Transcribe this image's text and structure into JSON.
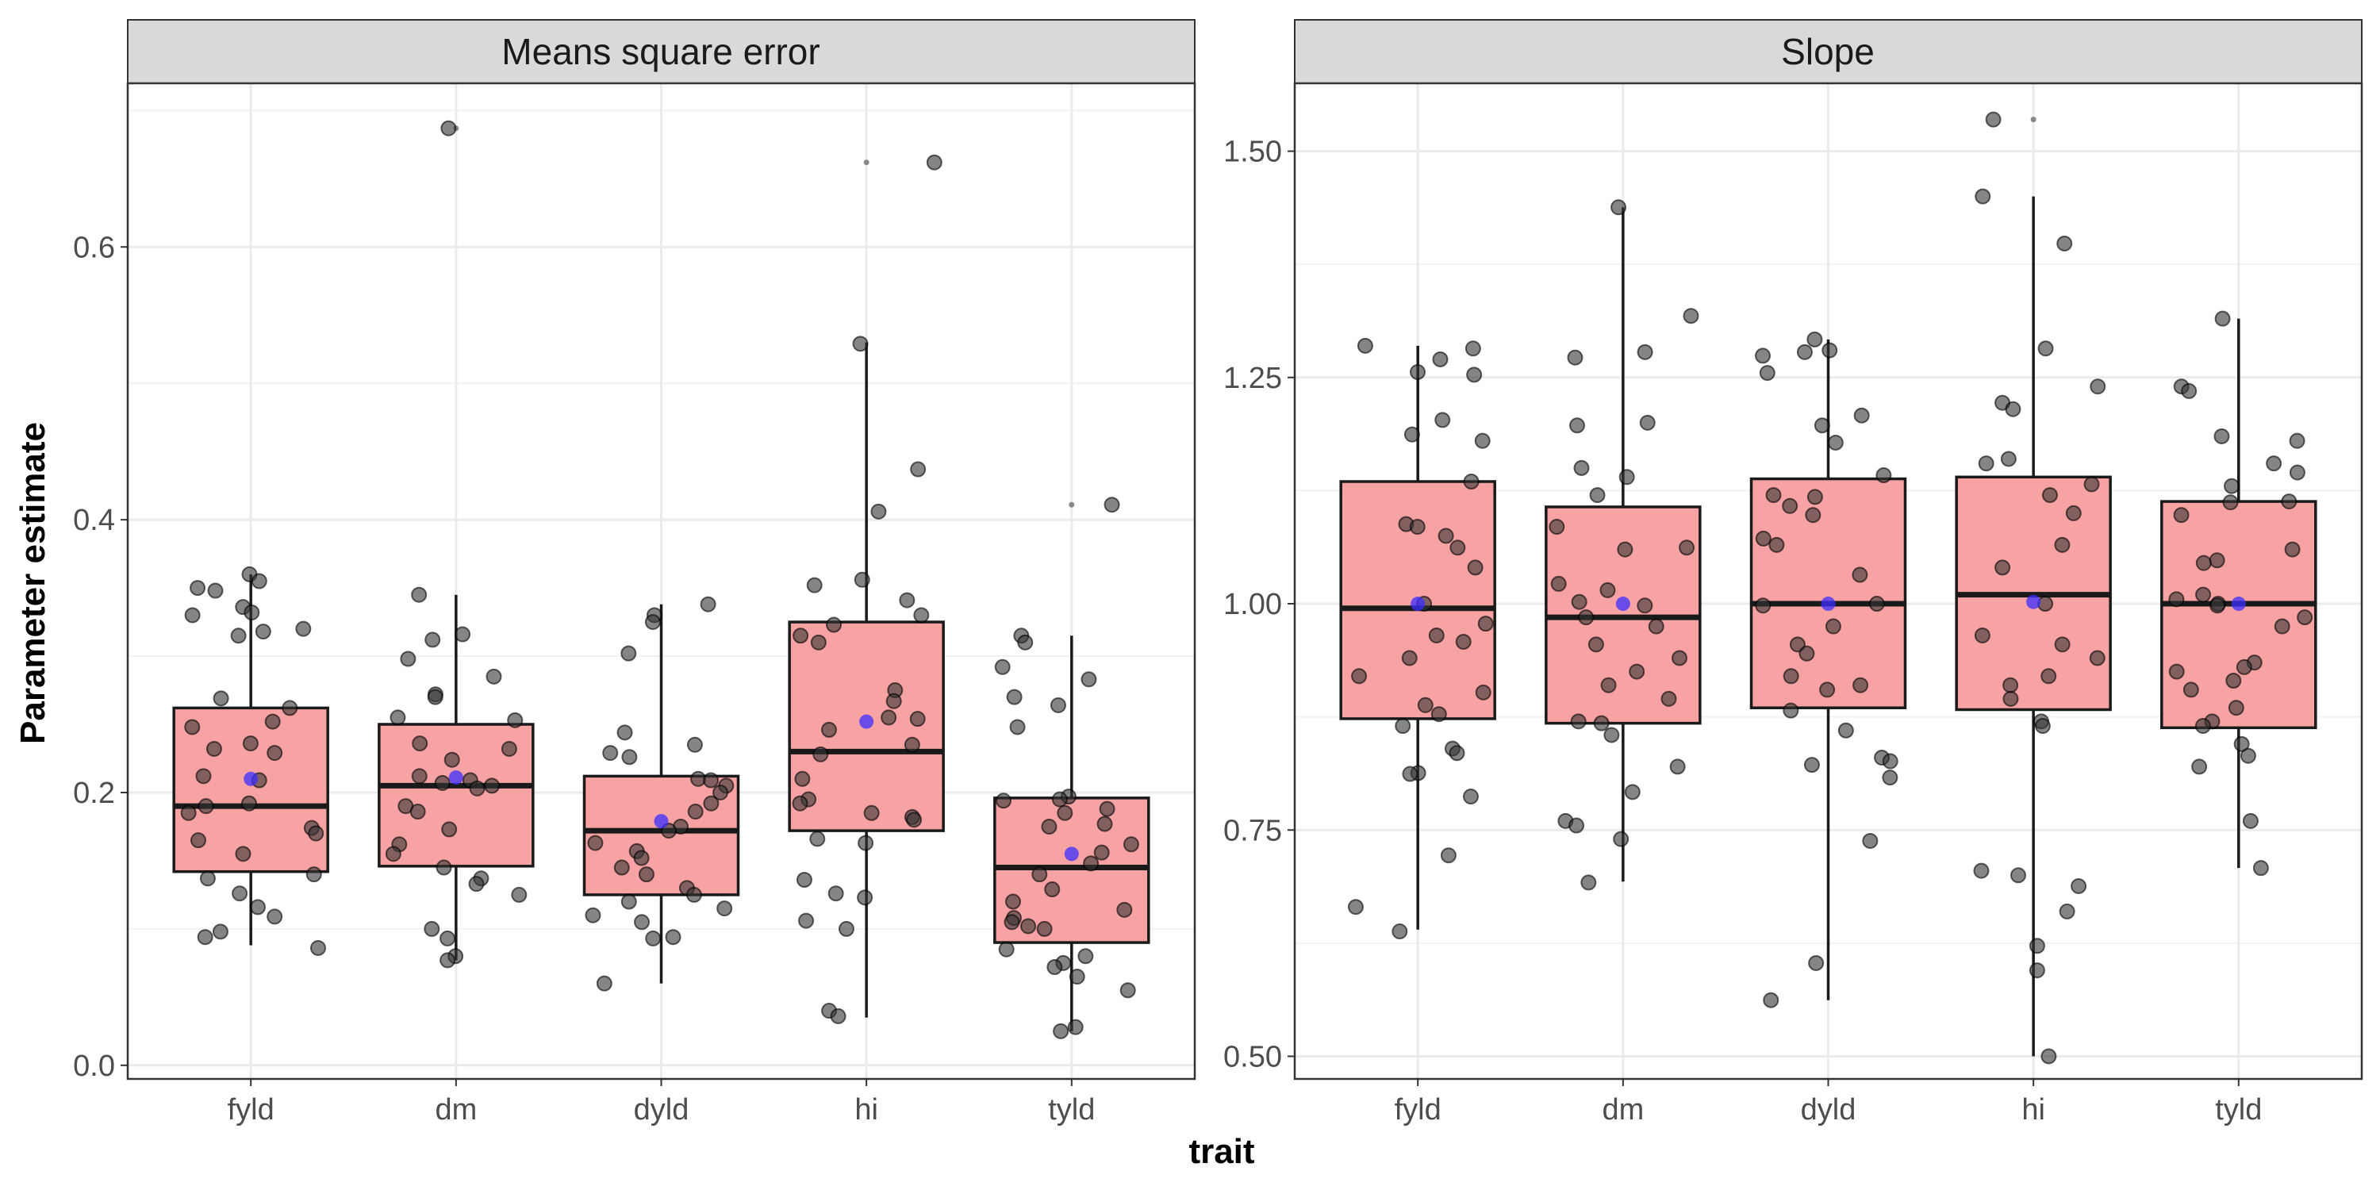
{
  "chart_data": {
    "type": "box",
    "xlabel": "trait",
    "ylabel": "Parameter estimate",
    "grid": true,
    "colors": {
      "box_fill": "#f8a3a3",
      "box_stroke": "#1a1a1a",
      "point": "#333333",
      "mean_point": "#3b2dff",
      "panel_bg": "#ffffff",
      "grid_major": "#ebebeb",
      "strip_bg": "#d9d9d9"
    },
    "panels": [
      {
        "title": "Means square error",
        "ylim": [
          -0.01,
          0.72
        ],
        "yticks": [
          0.0,
          0.2,
          0.4,
          0.6
        ],
        "ytick_labels": [
          "0.0",
          "0.2",
          "0.4",
          "0.6"
        ],
        "categories": [
          "fyld",
          "dm",
          "dyld",
          "hi",
          "tyld"
        ],
        "boxes": [
          {
            "whisker_low": 0.088,
            "q1": 0.142,
            "median": 0.19,
            "q3": 0.262,
            "whisker_high": 0.36,
            "mean": 0.21,
            "outliers": []
          },
          {
            "whisker_low": 0.077,
            "q1": 0.146,
            "median": 0.205,
            "q3": 0.25,
            "whisker_high": 0.345,
            "mean": 0.211,
            "outliers": [
              0.687
            ]
          },
          {
            "whisker_low": 0.06,
            "q1": 0.125,
            "median": 0.172,
            "q3": 0.212,
            "whisker_high": 0.338,
            "mean": 0.179,
            "outliers": []
          },
          {
            "whisker_low": 0.035,
            "q1": 0.172,
            "median": 0.23,
            "q3": 0.325,
            "whisker_high": 0.53,
            "mean": 0.252,
            "outliers": [
              0.662
            ]
          },
          {
            "whisker_low": 0.025,
            "q1": 0.09,
            "median": 0.145,
            "q3": 0.196,
            "whisker_high": 0.315,
            "mean": 0.155,
            "outliers": [
              0.411
            ]
          }
        ],
        "points": [
          [
            0.36,
            0.355,
            0.35,
            0.348,
            0.336,
            0.332,
            0.33,
            0.32,
            0.318,
            0.315,
            0.269,
            0.262,
            0.252,
            0.248,
            0.236,
            0.232,
            0.229,
            0.212,
            0.209,
            0.192,
            0.19,
            0.185,
            0.174,
            0.17,
            0.165,
            0.155,
            0.14,
            0.137,
            0.126,
            0.116,
            0.109,
            0.098,
            0.094,
            0.086
          ],
          [
            0.687,
            0.345,
            0.316,
            0.312,
            0.298,
            0.285,
            0.272,
            0.27,
            0.255,
            0.253,
            0.236,
            0.232,
            0.224,
            0.212,
            0.209,
            0.207,
            0.205,
            0.203,
            0.19,
            0.186,
            0.173,
            0.162,
            0.155,
            0.145,
            0.137,
            0.133,
            0.125,
            0.1,
            0.093,
            0.08,
            0.077
          ],
          [
            0.338,
            0.33,
            0.325,
            0.302,
            0.244,
            0.235,
            0.229,
            0.226,
            0.21,
            0.209,
            0.205,
            0.2,
            0.192,
            0.186,
            0.175,
            0.172,
            0.163,
            0.157,
            0.152,
            0.145,
            0.14,
            0.13,
            0.125,
            0.12,
            0.115,
            0.11,
            0.105,
            0.094,
            0.093,
            0.06
          ],
          [
            0.662,
            0.529,
            0.437,
            0.406,
            0.356,
            0.352,
            0.341,
            0.33,
            0.323,
            0.315,
            0.31,
            0.275,
            0.267,
            0.255,
            0.254,
            0.246,
            0.235,
            0.228,
            0.21,
            0.195,
            0.192,
            0.185,
            0.182,
            0.18,
            0.166,
            0.163,
            0.136,
            0.126,
            0.123,
            0.106,
            0.1,
            0.04,
            0.036
          ],
          [
            0.411,
            0.315,
            0.31,
            0.292,
            0.283,
            0.27,
            0.264,
            0.248,
            0.197,
            0.195,
            0.194,
            0.188,
            0.185,
            0.177,
            0.175,
            0.162,
            0.156,
            0.148,
            0.14,
            0.129,
            0.12,
            0.114,
            0.108,
            0.105,
            0.102,
            0.1,
            0.085,
            0.08,
            0.075,
            0.072,
            0.065,
            0.055,
            0.028,
            0.025
          ]
        ]
      },
      {
        "title": "Slope",
        "ylim": [
          0.475,
          1.575
        ],
        "yticks": [
          0.5,
          0.75,
          1.0,
          1.25,
          1.5
        ],
        "ytick_labels": [
          "0.50",
          "0.75",
          "1.00",
          "1.25",
          "1.50"
        ],
        "categories": [
          "fyld",
          "dm",
          "dyld",
          "hi",
          "tyld"
        ],
        "boxes": [
          {
            "whisker_low": 0.64,
            "q1": 0.873,
            "median": 0.995,
            "q3": 1.135,
            "whisker_high": 1.285,
            "mean": 1.0,
            "outliers": []
          },
          {
            "whisker_low": 0.693,
            "q1": 0.868,
            "median": 0.985,
            "q3": 1.107,
            "whisker_high": 1.438,
            "mean": 1.0,
            "outliers": []
          },
          {
            "whisker_low": 0.562,
            "q1": 0.885,
            "median": 1.0,
            "q3": 1.138,
            "whisker_high": 1.292,
            "mean": 1.0,
            "outliers": []
          },
          {
            "whisker_low": 0.5,
            "q1": 0.883,
            "median": 1.01,
            "q3": 1.14,
            "whisker_high": 1.45,
            "mean": 1.002,
            "outliers": [
              1.535
            ]
          },
          {
            "whisker_low": 0.708,
            "q1": 0.863,
            "median": 1.0,
            "q3": 1.113,
            "whisker_high": 1.315,
            "mean": 1.0,
            "outliers": []
          }
        ],
        "points": [
          [
            1.285,
            1.282,
            1.27,
            1.256,
            1.253,
            1.203,
            1.187,
            1.18,
            1.135,
            1.088,
            1.085,
            1.075,
            1.062,
            1.04,
            1.0,
            0.978,
            0.965,
            0.958,
            0.94,
            0.92,
            0.902,
            0.888,
            0.878,
            0.865,
            0.84,
            0.835,
            0.813,
            0.812,
            0.787,
            0.722,
            0.665,
            0.638
          ],
          [
            1.438,
            1.318,
            1.278,
            1.272,
            1.2,
            1.197,
            1.15,
            1.14,
            1.12,
            1.085,
            1.062,
            1.06,
            1.022,
            1.015,
            1.002,
            0.998,
            0.985,
            0.975,
            0.955,
            0.94,
            0.925,
            0.91,
            0.895,
            0.87,
            0.868,
            0.855,
            0.82,
            0.792,
            0.76,
            0.755,
            0.74,
            0.692
          ],
          [
            1.292,
            1.28,
            1.278,
            1.274,
            1.255,
            1.208,
            1.197,
            1.178,
            1.142,
            1.12,
            1.118,
            1.108,
            1.098,
            1.072,
            1.065,
            1.032,
            1.0,
            0.998,
            0.975,
            0.955,
            0.945,
            0.92,
            0.91,
            0.905,
            0.882,
            0.86,
            0.83,
            0.826,
            0.822,
            0.808,
            0.738,
            0.603,
            0.562
          ],
          [
            1.535,
            1.45,
            1.398,
            1.282,
            1.24,
            1.222,
            1.215,
            1.16,
            1.155,
            1.132,
            1.12,
            1.1,
            1.065,
            1.04,
            1.0,
            0.965,
            0.955,
            0.94,
            0.92,
            0.91,
            0.895,
            0.87,
            0.865,
            0.705,
            0.7,
            0.688,
            0.66,
            0.622,
            0.595,
            0.5
          ],
          [
            1.315,
            1.24,
            1.235,
            1.185,
            1.18,
            1.155,
            1.145,
            1.13,
            1.113,
            1.112,
            1.098,
            1.06,
            1.048,
            1.045,
            1.01,
            1.005,
            1.0,
            0.998,
            0.985,
            0.975,
            0.935,
            0.93,
            0.925,
            0.915,
            0.905,
            0.885,
            0.87,
            0.865,
            0.845,
            0.832,
            0.82,
            0.76,
            0.708
          ]
        ]
      }
    ]
  }
}
